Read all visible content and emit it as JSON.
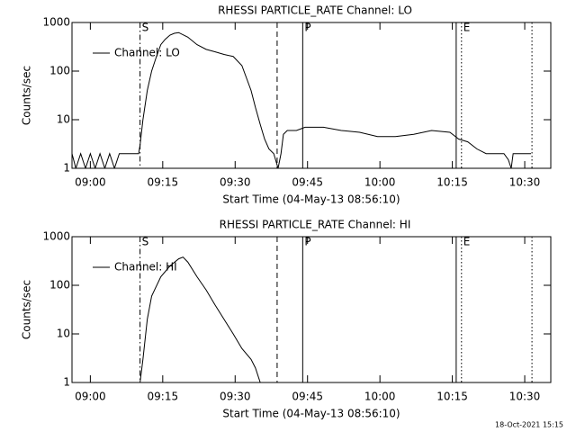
{
  "chart_data": [
    {
      "type": "line",
      "title": "RHESSI PARTICLE_RATE Channel: LO",
      "xlabel": "Start Time (04-May-13 08:56:10)",
      "ylabel": "Counts/sec",
      "log_y": true,
      "legend": "upper left",
      "xlim": [
        536.2,
        635.4
      ],
      "xticks": [
        {
          "value": 540,
          "label": "09:00"
        },
        {
          "value": 555,
          "label": "09:15"
        },
        {
          "value": 570,
          "label": "09:30"
        },
        {
          "value": 585,
          "label": "09:45"
        },
        {
          "value": 600,
          "label": "10:00"
        },
        {
          "value": 615,
          "label": "10:15"
        },
        {
          "value": 630,
          "label": "10:30"
        }
      ],
      "ylim": [
        1,
        1000
      ],
      "yticks": [
        1,
        10,
        100,
        1000
      ],
      "x": [
        536.2,
        537,
        538,
        539,
        540,
        541,
        542,
        543,
        544,
        545,
        546,
        547,
        548,
        549,
        550,
        550.3,
        550.9,
        551.8,
        552.7,
        553.7,
        554.6,
        555.5,
        556.5,
        557.4,
        558.3,
        560.2,
        562.1,
        564,
        565.8,
        567.7,
        569.6,
        571.4,
        573.3,
        574.2,
        575.2,
        576.1,
        577,
        578,
        578.9,
        579.5,
        580,
        580.8,
        582.7,
        584.5,
        588.3,
        592,
        595.8,
        599.5,
        603.2,
        607,
        610.7,
        614.5,
        616.3,
        618.2,
        620.1,
        622,
        625.7,
        626.6,
        627.2,
        627.6,
        631.3
      ],
      "series": [
        {
          "name": "Channel: LO",
          "color": "#000000",
          "values": [
            2,
            1,
            2,
            1,
            2,
            1,
            2,
            1,
            2,
            1,
            2,
            2,
            2,
            2,
            2,
            3,
            10,
            40,
            100,
            200,
            350,
            450,
            550,
            600,
            620,
            500,
            350,
            280,
            250,
            220,
            200,
            130,
            40,
            18,
            8,
            4,
            2.5,
            2,
            1,
            2,
            5,
            6,
            6,
            7,
            7,
            6,
            5.5,
            4.5,
            4.5,
            5,
            6,
            5.5,
            4,
            3.5,
            2.5,
            2,
            2,
            1.5,
            1,
            2,
            2
          ]
        }
      ],
      "markers": [
        {
          "x": 550.3,
          "style": "dashdot",
          "label": "S"
        },
        {
          "x": 578.7,
          "style": "dashed"
        },
        {
          "x": 584,
          "style": "solid",
          "label": "P"
        },
        {
          "x": 615.8,
          "style": "solid"
        },
        {
          "x": 616.9,
          "style": "dotted",
          "label": "E"
        },
        {
          "x": 631.5,
          "style": "dotted"
        }
      ]
    },
    {
      "type": "line",
      "title": "RHESSI PARTICLE_RATE Channel: HI",
      "xlabel": "Start Time (04-May-13 08:56:10)",
      "ylabel": "Counts/sec",
      "log_y": true,
      "legend": "upper left",
      "xlim": [
        536.2,
        635.4
      ],
      "xticks": [
        {
          "value": 540,
          "label": "09:00"
        },
        {
          "value": 555,
          "label": "09:15"
        },
        {
          "value": 570,
          "label": "09:30"
        },
        {
          "value": 585,
          "label": "09:45"
        },
        {
          "value": 600,
          "label": "10:00"
        },
        {
          "value": 615,
          "label": "10:15"
        },
        {
          "value": 630,
          "label": "10:30"
        }
      ],
      "ylim": [
        1,
        1000
      ],
      "yticks": [
        1,
        10,
        100,
        1000
      ],
      "x": [
        550.3,
        550.9,
        551.8,
        552.7,
        554.6,
        556.5,
        558.3,
        559.2,
        560.2,
        562.1,
        564,
        565.8,
        567.7,
        569.6,
        571.4,
        573.3,
        574.2,
        575.2
      ],
      "series": [
        {
          "name": "Channel: HI",
          "color": "#000000",
          "values": [
            1,
            3,
            20,
            60,
            150,
            250,
            350,
            380,
            300,
            150,
            80,
            40,
            20,
            10,
            5,
            3,
            2,
            1
          ]
        }
      ],
      "markers": [
        {
          "x": 550.3,
          "style": "dashdot",
          "label": "S"
        },
        {
          "x": 578.7,
          "style": "dashed"
        },
        {
          "x": 584,
          "style": "solid",
          "label": "P"
        },
        {
          "x": 615.8,
          "style": "solid"
        },
        {
          "x": 616.9,
          "style": "dotted",
          "label": "E"
        },
        {
          "x": 631.5,
          "style": "dotted"
        }
      ]
    }
  ],
  "footer": "18-Oct-2021 15:15"
}
